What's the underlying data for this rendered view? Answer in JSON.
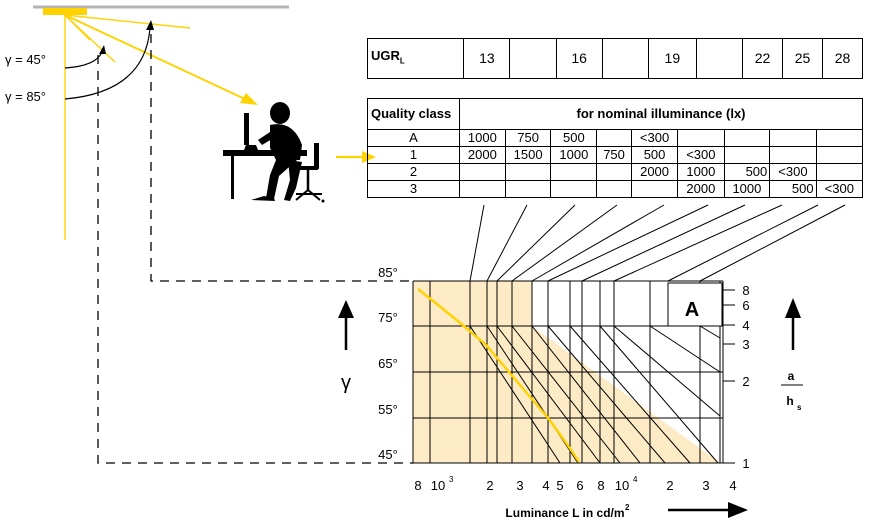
{
  "light_angles": {
    "gamma45": "γ = 45°",
    "gamma85": "γ = 85°"
  },
  "ugr_table": {
    "label_main": "UGR",
    "label_sub": "L",
    "values": [
      "13",
      "",
      "16",
      "",
      "19",
      "",
      "22",
      "25",
      "28"
    ]
  },
  "quality_table": {
    "header_label": "Quality class",
    "header_title": "for nominal illuminance (lx)",
    "rows": [
      {
        "class": "A",
        "cells": [
          "1000",
          "750",
          "500",
          "",
          "<300",
          "",
          "",
          "",
          ""
        ]
      },
      {
        "class": "1",
        "cells": [
          "2000",
          "1500",
          "1000",
          "750",
          "500",
          "<300",
          "",
          "",
          ""
        ]
      },
      {
        "class": "2",
        "cells": [
          "",
          "",
          "",
          "",
          "2000",
          "1000",
          "500",
          "<300",
          ""
        ]
      },
      {
        "class": "3",
        "cells": [
          "",
          "",
          "",
          "",
          "",
          "2000",
          "1000",
          "500",
          "<300"
        ]
      }
    ]
  },
  "chart": {
    "gamma_ticks": [
      "85°",
      "75°",
      "65°",
      "55°",
      "45°"
    ],
    "gamma_symbol": "γ",
    "box_label": "A",
    "ratio_ticks": [
      "8",
      "6",
      "4",
      "3",
      "2",
      "1"
    ],
    "ratio_label_top": "a",
    "ratio_label_bottom": "h",
    "ratio_label_sub": "s",
    "x_ticks": [
      "8",
      "10",
      "2",
      "3",
      "4",
      "5",
      "6",
      "8",
      "10",
      "2",
      "3",
      "4"
    ],
    "x_tick_sup": "3",
    "x_tick_sup2": "4",
    "xlabel_main": "Luminance L in cd/m",
    "xlabel_sup": "2"
  },
  "colors": {
    "yellow": "#ffd200",
    "fill": "#fcebc4"
  }
}
